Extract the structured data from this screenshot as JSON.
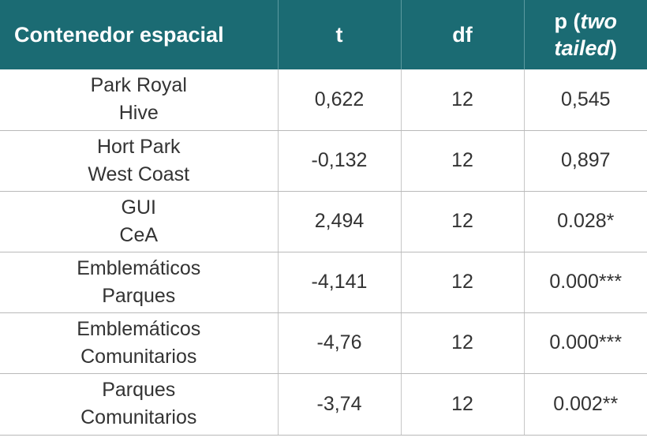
{
  "headers": {
    "col1": "Contenedor espacial",
    "col2": "t",
    "col3": "df",
    "col4_prefix": "p (",
    "col4_italic": "two tailed",
    "col4_suffix": ")"
  },
  "rows": [
    {
      "line1": "Park Royal",
      "line2": "Hive",
      "t": "0,622",
      "df": "12",
      "p": "0,545"
    },
    {
      "line1": "Hort Park",
      "line2": "West Coast",
      "t": "-0,132",
      "df": "12",
      "p": "0,897"
    },
    {
      "line1": "GUI",
      "line2": "CeA",
      "t": "2,494",
      "df": "12",
      "p": "0.028*"
    },
    {
      "line1": "Emblemáticos",
      "line2": "Parques",
      "t": "-4,141",
      "df": "12",
      "p": "0.000***"
    },
    {
      "line1": "Emblemáticos",
      "line2": "Comunitarios",
      "t": "-4,76",
      "df": "12",
      "p": "0.000***"
    },
    {
      "line1": "Parques",
      "line2": "Comunitarios",
      "t": "-3,74",
      "df": "12",
      "p": "0.002**"
    }
  ],
  "colors": {
    "header_bg": "#1b6b73",
    "header_text": "#ffffff",
    "body_text": "#333333"
  }
}
